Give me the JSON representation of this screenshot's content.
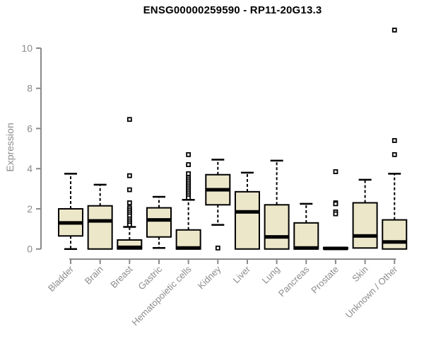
{
  "chart_data": {
    "type": "boxplot",
    "title": "ENSG00000259590 - RP11-20G13.3",
    "ylabel": "Expression",
    "xlabel": "",
    "ylim": [
      0,
      10
    ],
    "yticks": [
      0,
      2,
      4,
      6,
      8,
      10
    ],
    "grid": false,
    "legend": "none",
    "categories": [
      "Bladder",
      "Brain",
      "Breast",
      "Gastric",
      "Hematopoietic cells",
      "Kidney",
      "Liver",
      "Lung",
      "Pancreas",
      "Prostate",
      "Skin",
      "Unknown / Other"
    ],
    "boxes": [
      {
        "label": "Bladder",
        "whisker_low": 0,
        "q1": 0.65,
        "median": 1.3,
        "q3": 2.0,
        "whisker_high": 3.75,
        "outliers": []
      },
      {
        "label": "Brain",
        "whisker_low": 0,
        "q1": 0,
        "median": 1.4,
        "q3": 2.15,
        "whisker_high": 3.2,
        "outliers": []
      },
      {
        "label": "Breast",
        "whisker_low": 0,
        "q1": 0,
        "median": 0.08,
        "q3": 0.45,
        "whisker_high": 1.1,
        "outliers": [
          6.45,
          3.65,
          2.95,
          2.3,
          2.05,
          1.95,
          1.85,
          1.75,
          1.65,
          1.5,
          1.4,
          1.3,
          1.2
        ]
      },
      {
        "label": "Gastric",
        "whisker_low": 0.05,
        "q1": 0.6,
        "median": 1.45,
        "q3": 2.05,
        "whisker_high": 2.6,
        "outliers": []
      },
      {
        "label": "Hematopoietic cells",
        "whisker_low": 0,
        "q1": 0,
        "median": 0.05,
        "q3": 0.95,
        "whisker_high": 2.45,
        "outliers": [
          4.7,
          4.2,
          3.75,
          3.55,
          3.45,
          3.35,
          3.25,
          3.15,
          3.05,
          2.95,
          2.85,
          2.75,
          2.65,
          2.55
        ]
      },
      {
        "label": "Kidney",
        "whisker_low": 1.2,
        "q1": 2.2,
        "median": 2.95,
        "q3": 3.7,
        "whisker_high": 4.45,
        "outliers": [
          0.05
        ]
      },
      {
        "label": "Liver",
        "whisker_low": 0,
        "q1": 0,
        "median": 1.85,
        "q3": 2.85,
        "whisker_high": 3.8,
        "outliers": []
      },
      {
        "label": "Lung",
        "whisker_low": 0,
        "q1": 0,
        "median": 0.6,
        "q3": 2.2,
        "whisker_high": 4.4,
        "outliers": []
      },
      {
        "label": "Pancreas",
        "whisker_low": 0,
        "q1": 0,
        "median": 0.05,
        "q3": 1.3,
        "whisker_high": 2.25,
        "outliers": []
      },
      {
        "label": "Prostate",
        "whisker_low": 0,
        "q1": 0,
        "median": 0.03,
        "q3": 0.07,
        "whisker_high": 0.07,
        "outliers": [
          3.85,
          2.3,
          2.25,
          1.85,
          1.75
        ]
      },
      {
        "label": "Skin",
        "whisker_low": 0.05,
        "q1": 0.05,
        "median": 0.65,
        "q3": 2.3,
        "whisker_high": 3.45,
        "outliers": []
      },
      {
        "label": "Unknown / Other",
        "whisker_low": 0,
        "q1": 0,
        "median": 0.35,
        "q3": 1.45,
        "whisker_high": 3.75,
        "outliers": [
          10.9,
          5.4,
          4.7
        ]
      }
    ]
  },
  "colors": {
    "box_fill": "#ede7ca",
    "box_stroke": "#000000",
    "median_color": "#000000",
    "whisker_color": "#000000",
    "outlier_fill": "#ffffff",
    "axis_color": "#8a8a8a",
    "tick_label_color": "#8c8c8c",
    "title_color": "#000000",
    "background": "#ffffff"
  }
}
